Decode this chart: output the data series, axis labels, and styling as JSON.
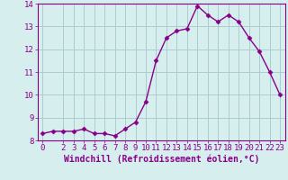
{
  "x": [
    0,
    1,
    2,
    3,
    4,
    5,
    6,
    7,
    8,
    9,
    10,
    11,
    12,
    13,
    14,
    15,
    16,
    17,
    18,
    19,
    20,
    21,
    22,
    23
  ],
  "y": [
    8.3,
    8.4,
    8.4,
    8.4,
    8.5,
    8.3,
    8.3,
    8.2,
    8.5,
    8.8,
    9.7,
    11.5,
    12.5,
    12.8,
    12.9,
    13.9,
    13.5,
    13.2,
    13.5,
    13.2,
    12.5,
    11.9,
    11.0,
    10.0
  ],
  "line_color": "#880088",
  "marker": "D",
  "marker_size": 2.5,
  "bg_color": "#d6eeee",
  "grid_color": "#aacccc",
  "xlabel": "Windchill (Refroidissement éolien,°C)",
  "xlabel_color": "#880088",
  "tick_color": "#880088",
  "spine_color": "#880088",
  "ylim": [
    8,
    14
  ],
  "xlim_min": -0.5,
  "xlim_max": 23.5,
  "yticks": [
    8,
    9,
    10,
    11,
    12,
    13,
    14
  ],
  "xticks": [
    0,
    2,
    3,
    4,
    5,
    6,
    7,
    8,
    9,
    10,
    11,
    12,
    13,
    14,
    15,
    16,
    17,
    18,
    19,
    20,
    21,
    22,
    23
  ],
  "tick_fontsize": 6.5,
  "xlabel_fontsize": 7.0,
  "linewidth": 1.0
}
